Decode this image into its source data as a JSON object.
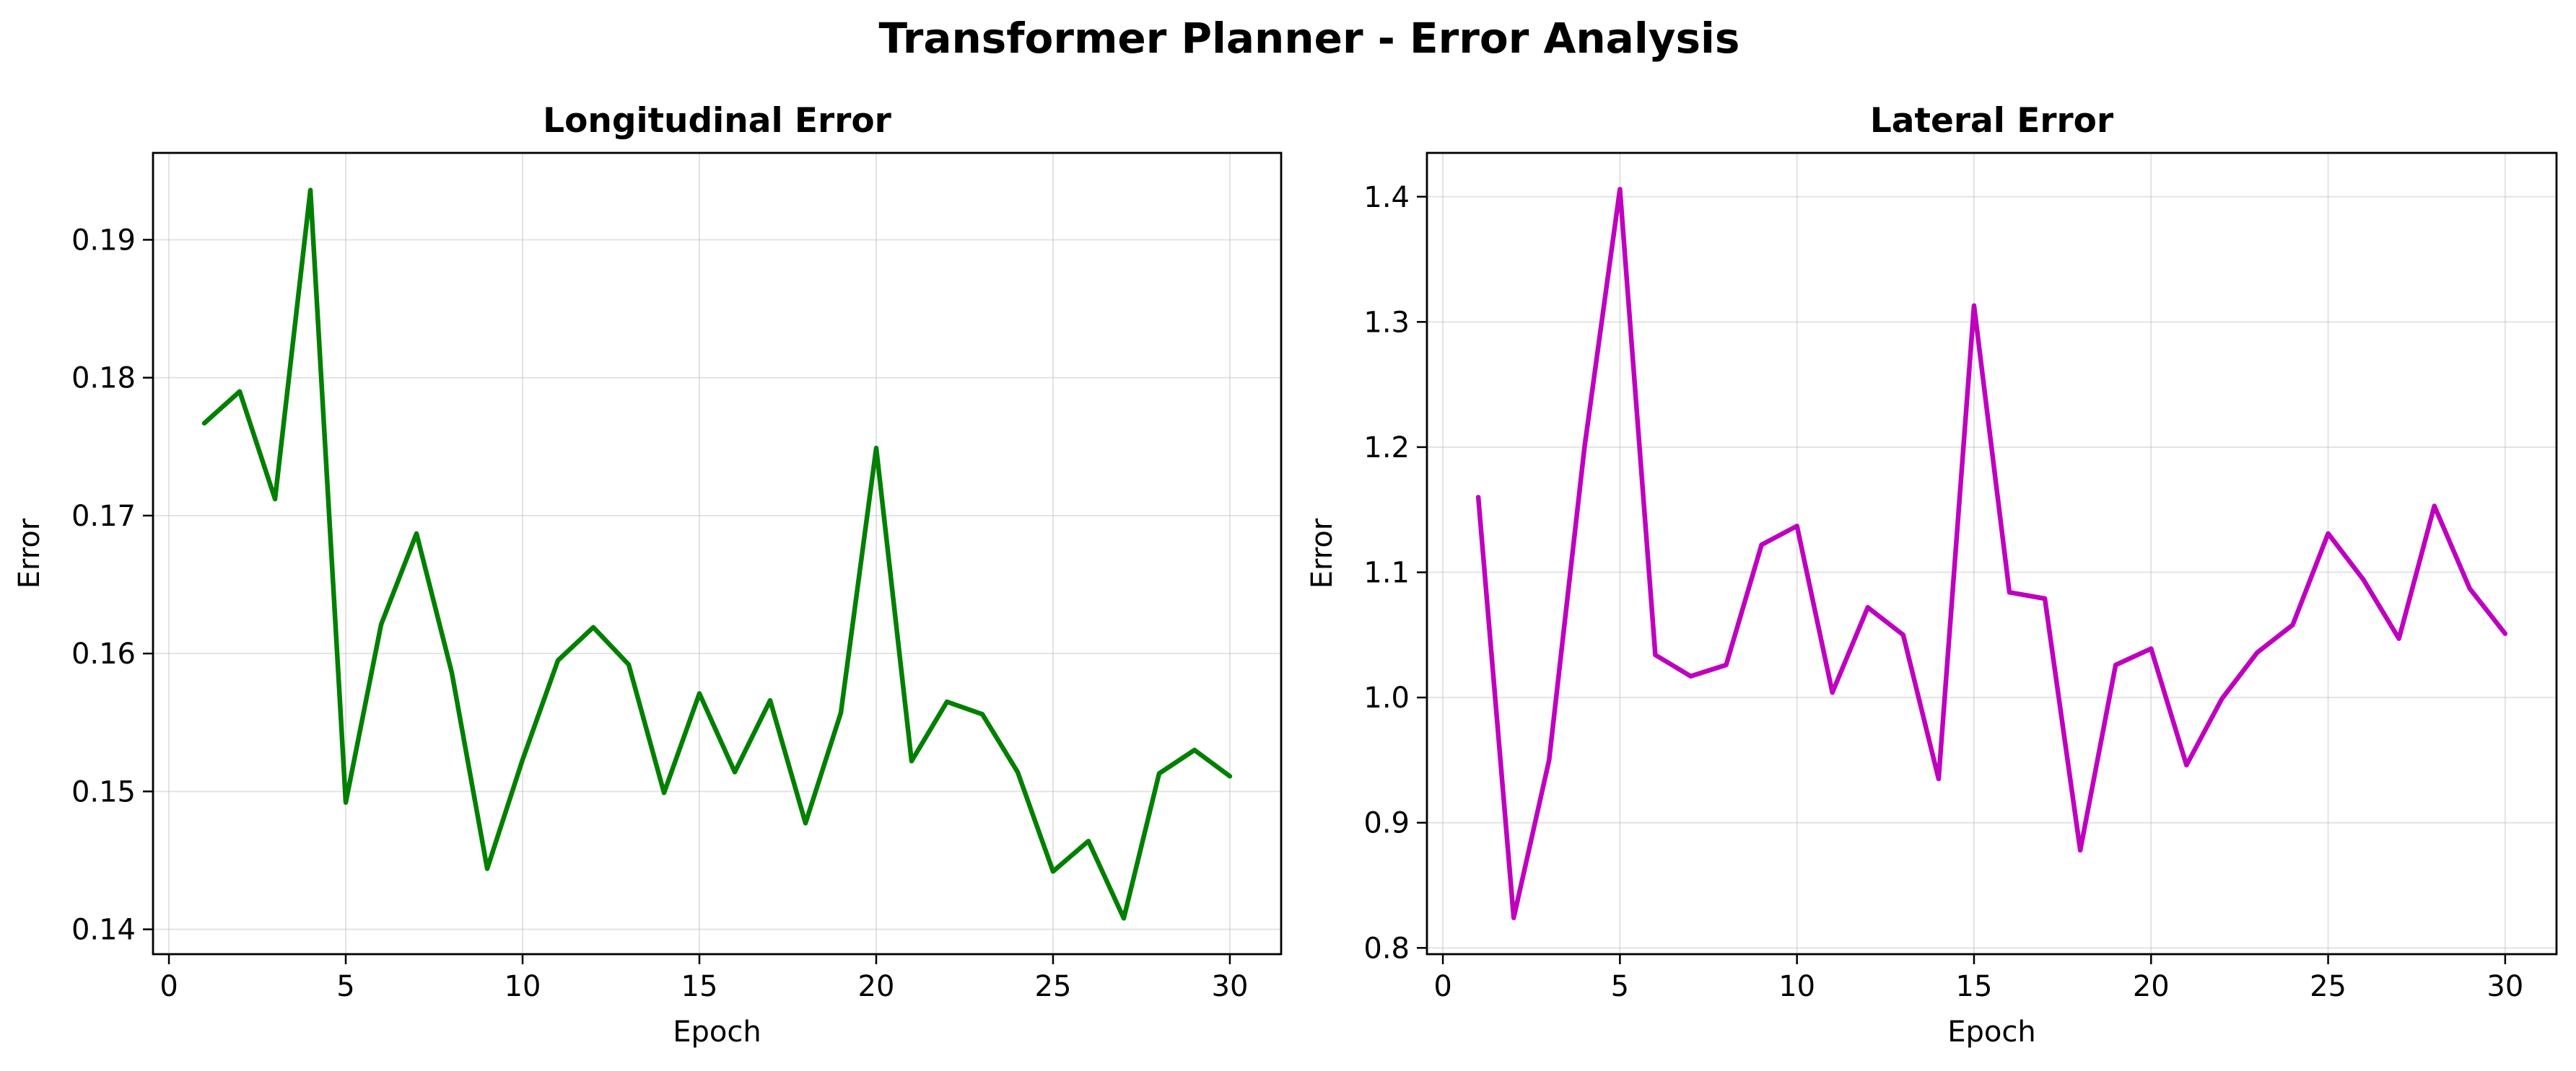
{
  "figure": {
    "title": "Transformer Planner - Error Analysis"
  },
  "chart_data": [
    {
      "type": "line",
      "title": "Longitudinal Error",
      "xlabel": "Epoch",
      "ylabel": "Error",
      "xlim": [
        -0.45,
        31.45
      ],
      "ylim": [
        0.1382,
        0.1963
      ],
      "xticks": [
        0,
        5,
        10,
        15,
        20,
        25,
        30
      ],
      "yticks": [
        0.14,
        0.15,
        0.16,
        0.17,
        0.18,
        0.19
      ],
      "ytick_labels": [
        "0.14",
        "0.15",
        "0.16",
        "0.17",
        "0.18",
        "0.19"
      ],
      "grid": true,
      "color": "#008000",
      "x": [
        1,
        2,
        3,
        4,
        5,
        6,
        7,
        8,
        9,
        10,
        11,
        12,
        13,
        14,
        15,
        16,
        17,
        18,
        19,
        20,
        21,
        22,
        23,
        24,
        25,
        26,
        27,
        28,
        29,
        30
      ],
      "values": [
        0.1767,
        0.179,
        0.1712,
        0.1936,
        0.1492,
        0.1621,
        0.1687,
        0.1586,
        0.1444,
        0.1523,
        0.1595,
        0.1619,
        0.1592,
        0.1499,
        0.1571,
        0.1514,
        0.1566,
        0.1477,
        0.1557,
        0.1749,
        0.1522,
        0.1565,
        0.1556,
        0.1514,
        0.1442,
        0.1464,
        0.1408,
        0.1513,
        0.153,
        0.1511
      ]
    },
    {
      "type": "line",
      "title": "Lateral Error",
      "xlabel": "Epoch",
      "ylabel": "Error",
      "xlim": [
        -0.45,
        31.45
      ],
      "ylim": [
        0.795,
        1.435
      ],
      "xticks": [
        0,
        5,
        10,
        15,
        20,
        25,
        30
      ],
      "yticks": [
        0.8,
        0.9,
        1.0,
        1.1,
        1.2,
        1.3,
        1.4
      ],
      "ytick_labels": [
        "0.8",
        "0.9",
        "1.0",
        "1.1",
        "1.2",
        "1.3",
        "1.4"
      ],
      "grid": true,
      "color": "#bf00bf",
      "x": [
        1,
        2,
        3,
        4,
        5,
        6,
        7,
        8,
        9,
        10,
        11,
        12,
        13,
        14,
        15,
        16,
        17,
        18,
        19,
        20,
        21,
        22,
        23,
        24,
        25,
        26,
        27,
        28,
        29,
        30
      ],
      "values": [
        1.16,
        0.824,
        0.95,
        1.2,
        1.406,
        1.034,
        1.017,
        1.026,
        1.122,
        1.137,
        1.004,
        1.072,
        1.05,
        0.935,
        1.313,
        1.084,
        1.079,
        0.878,
        1.026,
        1.039,
        0.946,
        0.999,
        1.036,
        1.058,
        1.131,
        1.094,
        1.047,
        1.153,
        1.087,
        1.051
      ]
    }
  ]
}
